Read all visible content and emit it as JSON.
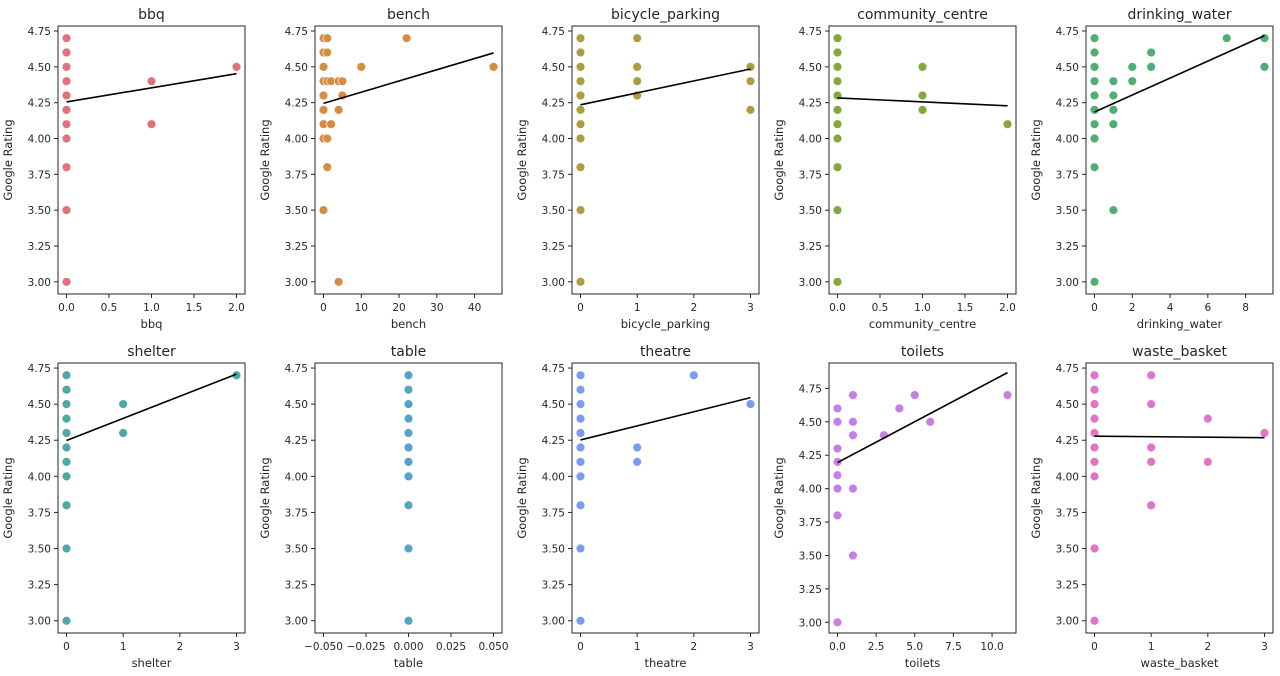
{
  "chart_data": [
    {
      "type": "scatter",
      "title": "bbq",
      "xlabel": "bbq",
      "ylabel": "Google Rating",
      "color": "#e07180",
      "xlim": [
        -0.1,
        2.1
      ],
      "ylim": [
        2.915,
        4.785
      ],
      "xticks": [
        0,
        0.5,
        1,
        1.5,
        2
      ],
      "xticklabels": [
        "0.0",
        "0.5",
        "1.0",
        "1.5",
        "2.0"
      ],
      "yticks": [
        3.0,
        3.25,
        3.5,
        3.75,
        4.0,
        4.25,
        4.5,
        4.75
      ],
      "yticklabels": [
        "3.00",
        "3.25",
        "3.50",
        "3.75",
        "4.00",
        "4.25",
        "4.50",
        "4.75"
      ],
      "points": [
        [
          0,
          4.7
        ],
        [
          0,
          4.6
        ],
        [
          0,
          4.5
        ],
        [
          0,
          4.4
        ],
        [
          0,
          4.3
        ],
        [
          0,
          4.2
        ],
        [
          0,
          4.1
        ],
        [
          0,
          4.0
        ],
        [
          0,
          3.8
        ],
        [
          0,
          3.5
        ],
        [
          0,
          3.0
        ],
        [
          1,
          4.4
        ],
        [
          1,
          4.1
        ],
        [
          2,
          4.5
        ]
      ],
      "fit": [
        [
          0,
          4.255
        ],
        [
          2,
          4.452
        ]
      ]
    },
    {
      "type": "scatter",
      "title": "bench",
      "xlabel": "bench",
      "ylabel": "Google Rating",
      "color": "#d38d45",
      "xlim": [
        -2.25,
        47.25
      ],
      "ylim": [
        2.915,
        4.785
      ],
      "xticks": [
        0,
        10,
        20,
        30,
        40
      ],
      "xticklabels": [
        "0",
        "10",
        "20",
        "30",
        "40"
      ],
      "yticks": [
        3.0,
        3.25,
        3.5,
        3.75,
        4.0,
        4.25,
        4.5,
        4.75
      ],
      "yticklabels": [
        "3.00",
        "3.25",
        "3.50",
        "3.75",
        "4.00",
        "4.25",
        "4.50",
        "4.75"
      ],
      "points": [
        [
          0,
          4.7
        ],
        [
          1,
          4.7
        ],
        [
          0,
          4.6
        ],
        [
          1,
          4.6
        ],
        [
          0,
          4.5
        ],
        [
          10,
          4.5
        ],
        [
          22,
          4.7
        ],
        [
          45,
          4.5
        ],
        [
          0,
          4.4
        ],
        [
          1,
          4.4
        ],
        [
          2,
          4.4
        ],
        [
          4,
          4.4
        ],
        [
          5,
          4.4
        ],
        [
          0,
          4.3
        ],
        [
          5,
          4.3
        ],
        [
          0,
          4.2
        ],
        [
          4,
          4.2
        ],
        [
          0,
          4.1
        ],
        [
          2,
          4.1
        ],
        [
          0,
          4.0
        ],
        [
          1,
          4.0
        ],
        [
          1,
          3.8
        ],
        [
          0,
          3.5
        ],
        [
          4,
          3.0
        ]
      ],
      "fit": [
        [
          0,
          4.245
        ],
        [
          45,
          4.597
        ]
      ]
    },
    {
      "type": "scatter",
      "title": "bicycle_parking",
      "xlabel": "bicycle_parking",
      "ylabel": "Google Rating",
      "color": "#ad9c43",
      "xlim": [
        -0.15,
        3.15
      ],
      "ylim": [
        2.915,
        4.785
      ],
      "xticks": [
        0,
        1,
        2,
        3
      ],
      "xticklabels": [
        "0",
        "1",
        "2",
        "3"
      ],
      "yticks": [
        3.0,
        3.25,
        3.5,
        3.75,
        4.0,
        4.25,
        4.5,
        4.75
      ],
      "yticklabels": [
        "3.00",
        "3.25",
        "3.50",
        "3.75",
        "4.00",
        "4.25",
        "4.50",
        "4.75"
      ],
      "points": [
        [
          0,
          4.7
        ],
        [
          0,
          4.6
        ],
        [
          0,
          4.5
        ],
        [
          0,
          4.4
        ],
        [
          0,
          4.3
        ],
        [
          0,
          4.2
        ],
        [
          0,
          4.1
        ],
        [
          0,
          4.0
        ],
        [
          0,
          3.8
        ],
        [
          0,
          3.5
        ],
        [
          0,
          3.0
        ],
        [
          1,
          4.7
        ],
        [
          1,
          4.5
        ],
        [
          1,
          4.4
        ],
        [
          1,
          4.3
        ],
        [
          3,
          4.5
        ],
        [
          3,
          4.4
        ],
        [
          3,
          4.2
        ]
      ],
      "fit": [
        [
          0,
          4.235
        ],
        [
          3,
          4.485
        ]
      ]
    },
    {
      "type": "scatter",
      "title": "community_centre",
      "xlabel": "community_centre",
      "ylabel": "Google Rating",
      "color": "#84a73f",
      "xlim": [
        -0.1,
        2.1
      ],
      "ylim": [
        2.915,
        4.785
      ],
      "xticks": [
        0,
        0.5,
        1,
        1.5,
        2
      ],
      "xticklabels": [
        "0.0",
        "0.5",
        "1.0",
        "1.5",
        "2.0"
      ],
      "yticks": [
        3.0,
        3.25,
        3.5,
        3.75,
        4.0,
        4.25,
        4.5,
        4.75
      ],
      "yticklabels": [
        "3.00",
        "3.25",
        "3.50",
        "3.75",
        "4.00",
        "4.25",
        "4.50",
        "4.75"
      ],
      "points": [
        [
          0,
          4.7
        ],
        [
          0,
          4.6
        ],
        [
          0,
          4.5
        ],
        [
          0,
          4.4
        ],
        [
          0,
          4.3
        ],
        [
          0,
          4.2
        ],
        [
          0,
          4.1
        ],
        [
          0,
          4.0
        ],
        [
          0,
          3.8
        ],
        [
          0,
          3.5
        ],
        [
          0,
          3.0
        ],
        [
          1,
          4.5
        ],
        [
          1,
          4.3
        ],
        [
          1,
          4.2
        ],
        [
          2,
          4.1
        ]
      ],
      "fit": [
        [
          0,
          4.283
        ],
        [
          2,
          4.228
        ]
      ]
    },
    {
      "type": "scatter",
      "title": "drinking_water",
      "xlabel": "drinking_water",
      "ylabel": "Google Rating",
      "color": "#4fae75",
      "xlim": [
        -0.45,
        9.45
      ],
      "ylim": [
        2.915,
        4.785
      ],
      "xticks": [
        0,
        2,
        4,
        6,
        8
      ],
      "xticklabels": [
        "0",
        "2",
        "4",
        "6",
        "8"
      ],
      "yticks": [
        3.0,
        3.25,
        3.5,
        3.75,
        4.0,
        4.25,
        4.5,
        4.75
      ],
      "yticklabels": [
        "3.00",
        "3.25",
        "3.50",
        "3.75",
        "4.00",
        "4.25",
        "4.50",
        "4.75"
      ],
      "points": [
        [
          0,
          4.7
        ],
        [
          0,
          4.6
        ],
        [
          0,
          4.5
        ],
        [
          0,
          4.4
        ],
        [
          0,
          4.3
        ],
        [
          0,
          4.2
        ],
        [
          0,
          4.1
        ],
        [
          0,
          4.0
        ],
        [
          0,
          3.8
        ],
        [
          0,
          3.0
        ],
        [
          1,
          4.4
        ],
        [
          1,
          4.3
        ],
        [
          1,
          4.2
        ],
        [
          1,
          4.1
        ],
        [
          1,
          3.5
        ],
        [
          2,
          4.5
        ],
        [
          2,
          4.4
        ],
        [
          3,
          4.6
        ],
        [
          3,
          4.5
        ],
        [
          7,
          4.7
        ],
        [
          9,
          4.7
        ],
        [
          9,
          4.5
        ]
      ],
      "fit": [
        [
          0,
          4.185
        ],
        [
          9,
          4.718
        ]
      ]
    },
    {
      "type": "scatter",
      "title": "shelter",
      "xlabel": "shelter",
      "ylabel": "Google Rating",
      "color": "#4fa9a1",
      "xlim": [
        -0.15,
        3.15
      ],
      "ylim": [
        2.915,
        4.785
      ],
      "xticks": [
        0,
        1,
        2,
        3
      ],
      "xticklabels": [
        "0",
        "1",
        "2",
        "3"
      ],
      "yticks": [
        3.0,
        3.25,
        3.5,
        3.75,
        4.0,
        4.25,
        4.5,
        4.75
      ],
      "yticklabels": [
        "3.00",
        "3.25",
        "3.50",
        "3.75",
        "4.00",
        "4.25",
        "4.50",
        "4.75"
      ],
      "points": [
        [
          0,
          4.7
        ],
        [
          0,
          4.6
        ],
        [
          0,
          4.5
        ],
        [
          0,
          4.4
        ],
        [
          0,
          4.3
        ],
        [
          0,
          4.2
        ],
        [
          0,
          4.1
        ],
        [
          0,
          4.0
        ],
        [
          0,
          3.8
        ],
        [
          0,
          3.5
        ],
        [
          0,
          3.0
        ],
        [
          1,
          4.5
        ],
        [
          1,
          4.3
        ],
        [
          3,
          4.7
        ]
      ],
      "fit": [
        [
          0,
          4.248
        ],
        [
          3,
          4.708
        ]
      ]
    },
    {
      "type": "scatter",
      "title": "table",
      "xlabel": "table",
      "ylabel": "Google Rating",
      "color": "#54a5c5",
      "xlim": [
        -0.055,
        0.055
      ],
      "ylim": [
        2.915,
        4.785
      ],
      "xticks": [
        -0.05,
        -0.025,
        0,
        0.025,
        0.05
      ],
      "xticklabels": [
        "−0.050",
        "−0.025",
        "0.000",
        "0.025",
        "0.050"
      ],
      "yticks": [
        3.0,
        3.25,
        3.5,
        3.75,
        4.0,
        4.25,
        4.5,
        4.75
      ],
      "yticklabels": [
        "3.00",
        "3.25",
        "3.50",
        "3.75",
        "4.00",
        "4.25",
        "4.50",
        "4.75"
      ],
      "points": [
        [
          0,
          4.7
        ],
        [
          0,
          4.6
        ],
        [
          0,
          4.5
        ],
        [
          0,
          4.4
        ],
        [
          0,
          4.3
        ],
        [
          0,
          4.2
        ],
        [
          0,
          4.1
        ],
        [
          0,
          4.0
        ],
        [
          0,
          3.8
        ],
        [
          0,
          3.5
        ],
        [
          0,
          3.0
        ]
      ],
      "fit": []
    },
    {
      "type": "scatter",
      "title": "theatre",
      "xlabel": "theatre",
      "ylabel": "Google Rating",
      "color": "#7a9cf0",
      "xlim": [
        -0.15,
        3.15
      ],
      "ylim": [
        2.915,
        4.785
      ],
      "xticks": [
        0,
        1,
        2,
        3
      ],
      "xticklabels": [
        "0",
        "1",
        "2",
        "3"
      ],
      "yticks": [
        3.0,
        3.25,
        3.5,
        3.75,
        4.0,
        4.25,
        4.5,
        4.75
      ],
      "yticklabels": [
        "3.00",
        "3.25",
        "3.50",
        "3.75",
        "4.00",
        "4.25",
        "4.50",
        "4.75"
      ],
      "points": [
        [
          0,
          4.7
        ],
        [
          0,
          4.6
        ],
        [
          0,
          4.5
        ],
        [
          0,
          4.4
        ],
        [
          0,
          4.3
        ],
        [
          0,
          4.2
        ],
        [
          0,
          4.1
        ],
        [
          0,
          4.0
        ],
        [
          0,
          3.8
        ],
        [
          0,
          3.5
        ],
        [
          0,
          3.0
        ],
        [
          1,
          4.2
        ],
        [
          1,
          4.1
        ],
        [
          2,
          4.7
        ],
        [
          3,
          4.5
        ]
      ],
      "fit": [
        [
          0,
          4.252
        ],
        [
          3,
          4.545
        ]
      ]
    },
    {
      "type": "scatter",
      "title": "toilets",
      "xlabel": "toilets",
      "ylabel": "Google Rating",
      "color": "#c77fe6",
      "xlim": [
        -0.55,
        11.55
      ],
      "ylim": [
        2.92,
        4.94
      ],
      "xticks": [
        0,
        2.5,
        5,
        7.5,
        10
      ],
      "xticklabels": [
        "0.0",
        "2.5",
        "5.0",
        "7.5",
        "10.0"
      ],
      "yticks": [
        3.0,
        3.25,
        3.5,
        3.75,
        4.0,
        4.25,
        4.5,
        4.75
      ],
      "yticklabels": [
        "3.00",
        "3.25",
        "3.50",
        "3.75",
        "4.00",
        "4.25",
        "4.50",
        "4.75"
      ],
      "points": [
        [
          0,
          4.6
        ],
        [
          0,
          4.5
        ],
        [
          0,
          4.3
        ],
        [
          0,
          4.2
        ],
        [
          0,
          4.1
        ],
        [
          0,
          4.0
        ],
        [
          0,
          3.8
        ],
        [
          0,
          3.0
        ],
        [
          1,
          4.7
        ],
        [
          1,
          4.5
        ],
        [
          1,
          4.4
        ],
        [
          1,
          4.0
        ],
        [
          1,
          3.5
        ],
        [
          3,
          4.4
        ],
        [
          4,
          4.6
        ],
        [
          5,
          4.7
        ],
        [
          6,
          4.5
        ],
        [
          11,
          4.7
        ]
      ],
      "fit": [
        [
          0,
          4.195
        ],
        [
          11,
          4.868
        ]
      ]
    },
    {
      "type": "scatter",
      "title": "waste_basket",
      "xlabel": "waste_basket",
      "ylabel": "Google Rating",
      "color": "#e075c8",
      "xlim": [
        -0.15,
        3.15
      ],
      "ylim": [
        2.915,
        4.785
      ],
      "xticks": [
        0,
        1,
        2,
        3
      ],
      "xticklabels": [
        "0",
        "1",
        "2",
        "3"
      ],
      "yticks": [
        3.0,
        3.25,
        3.5,
        3.75,
        4.0,
        4.25,
        4.5,
        4.75
      ],
      "yticklabels": [
        "3.00",
        "3.25",
        "3.50",
        "3.75",
        "4.00",
        "4.25",
        "4.50",
        "4.75"
      ],
      "points": [
        [
          0,
          4.7
        ],
        [
          0,
          4.6
        ],
        [
          0,
          4.5
        ],
        [
          0,
          4.4
        ],
        [
          0,
          4.3
        ],
        [
          0,
          4.2
        ],
        [
          0,
          4.1
        ],
        [
          0,
          4.0
        ],
        [
          0,
          3.5
        ],
        [
          0,
          3.0
        ],
        [
          1,
          4.7
        ],
        [
          1,
          4.5
        ],
        [
          1,
          4.2
        ],
        [
          1,
          4.1
        ],
        [
          1,
          3.8
        ],
        [
          2,
          4.4
        ],
        [
          2,
          4.1
        ],
        [
          3,
          4.3
        ]
      ],
      "fit": [
        [
          0,
          4.278
        ],
        [
          3,
          4.268
        ]
      ]
    }
  ],
  "style": {
    "fit_color": "#000000",
    "axis_color": "#262626",
    "text_color": "#262626"
  }
}
